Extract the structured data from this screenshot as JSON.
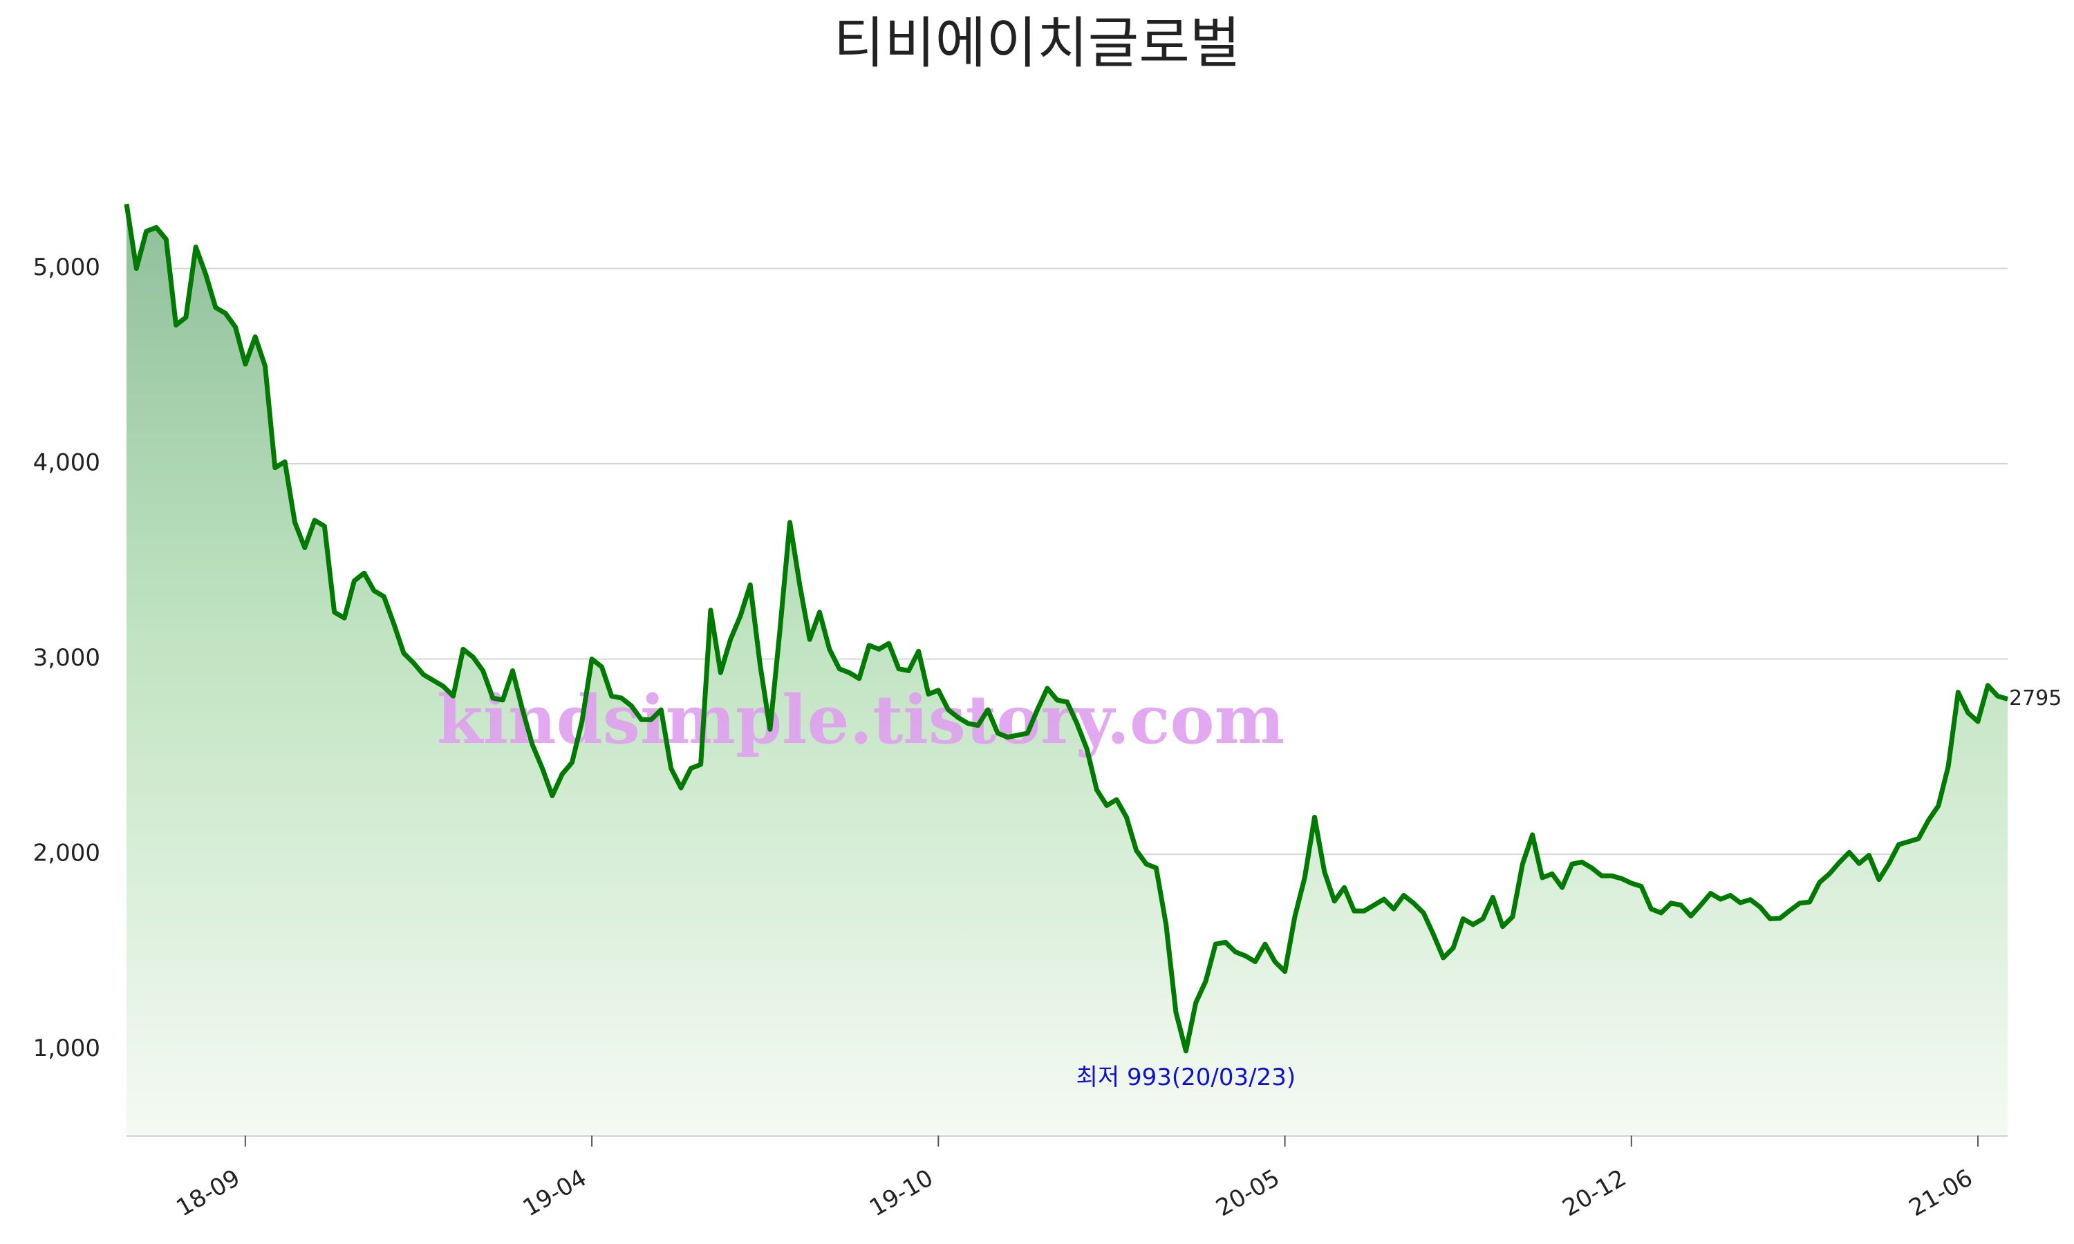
{
  "chart_data": {
    "type": "area-line",
    "title": "티비에이치글로벌",
    "watermark": "kindsimple.tistory.com",
    "annotation": "최저 993(20/03/23)",
    "categories": [
      null,
      null,
      null,
      null,
      null,
      null,
      null,
      null,
      null,
      null,
      null,
      null,
      "18-09",
      null,
      null,
      null,
      null,
      null,
      null,
      null,
      null,
      null,
      null,
      null,
      null,
      null,
      null,
      null,
      null,
      null,
      null,
      null,
      null,
      null,
      null,
      null,
      null,
      null,
      null,
      null,
      null,
      null,
      null,
      null,
      null,
      null,
      null,
      "19-04",
      null,
      null,
      null,
      null,
      null,
      null,
      null,
      null,
      null,
      null,
      null,
      null,
      null,
      null,
      null,
      null,
      null,
      null,
      null,
      null,
      null,
      null,
      null,
      null,
      null,
      null,
      null,
      null,
      null,
      null,
      null,
      null,
      null,
      null,
      "19-10",
      null,
      null,
      null,
      null,
      null,
      null,
      null,
      null,
      null,
      null,
      null,
      null,
      null,
      null,
      null,
      null,
      null,
      null,
      null,
      null,
      null,
      null,
      null,
      null,
      null,
      null,
      null,
      null,
      null,
      null,
      null,
      null,
      null,
      null,
      "20-05",
      null,
      null,
      null,
      null,
      null,
      null,
      null,
      null,
      null,
      null,
      null,
      null,
      null,
      null,
      null,
      null,
      null,
      null,
      null,
      null,
      null,
      null,
      null,
      null,
      null,
      null,
      null,
      null,
      null,
      null,
      null,
      null,
      null,
      null,
      "20-12",
      null,
      null,
      null,
      null,
      null,
      null,
      null,
      null,
      null,
      null,
      null,
      null,
      null,
      null,
      null,
      null,
      null,
      null,
      null,
      null,
      null,
      null,
      null,
      null,
      null,
      null,
      null,
      null,
      null,
      null,
      null,
      null,
      null,
      null,
      "21-06",
      null,
      null,
      null
    ],
    "series": [
      {
        "color": "#007a00",
        "values": [
          5330,
          5000,
          5190,
          5210,
          5150,
          4710,
          4750,
          5110,
          4970,
          4800,
          4770,
          4700,
          4510,
          4650,
          4500,
          3980,
          4010,
          3700,
          3570,
          3710,
          3680,
          3240,
          3210,
          3400,
          3440,
          3350,
          3320,
          3180,
          3030,
          2980,
          2920,
          2890,
          2860,
          2810,
          3050,
          3010,
          2940,
          2800,
          2790,
          2940,
          2740,
          2560,
          2440,
          2300,
          2410,
          2470,
          2680,
          3000,
          2960,
          2810,
          2800,
          2760,
          2690,
          2690,
          2740,
          2440,
          2340,
          2440,
          2460,
          3250,
          2930,
          3100,
          3220,
          3380,
          2970,
          2640,
          3150,
          3700,
          3380,
          3100,
          3240,
          3050,
          2950,
          2930,
          2900,
          3070,
          3050,
          3080,
          2950,
          2940,
          3040,
          2820,
          2840,
          2740,
          2700,
          2670,
          2660,
          2740,
          2620,
          2600,
          2610,
          2620,
          2740,
          2850,
          2790,
          2780,
          2670,
          2540,
          2330,
          2250,
          2280,
          2190,
          2020,
          1950,
          1930,
          1640,
          1190,
          993,
          1240,
          1350,
          1540,
          1550,
          1500,
          1480,
          1450,
          1540,
          1450,
          1400,
          1680,
          1880,
          2190,
          1910,
          1760,
          1830,
          1710,
          1710,
          1740,
          1770,
          1720,
          1790,
          1750,
          1700,
          1590,
          1470,
          1520,
          1670,
          1640,
          1670,
          1780,
          1630,
          1680,
          1950,
          2100,
          1880,
          1900,
          1830,
          1950,
          1960,
          1930,
          1890,
          1890,
          1876,
          1852,
          1836,
          1720,
          1700,
          1750,
          1740,
          1684,
          1740,
          1800,
          1770,
          1790,
          1752,
          1768,
          1730,
          1670,
          1672,
          1712,
          1750,
          1756,
          1856,
          1900,
          1958,
          2010,
          1953,
          1995,
          1871,
          1952,
          2050,
          2065,
          2080,
          2174,
          2248,
          2450,
          2830,
          2725,
          2680,
          2865,
          2810,
          2795
        ]
      }
    ],
    "ylim": [
      560,
      5490
    ],
    "yticks": [
      {
        "value": 1000,
        "label": "1,000"
      },
      {
        "value": 2000,
        "label": "2,000"
      },
      {
        "value": 3000,
        "label": "3,000"
      },
      {
        "value": 4000,
        "label": "4,000"
      },
      {
        "value": 5000,
        "label": "5,000"
      }
    ],
    "grid": true
  }
}
